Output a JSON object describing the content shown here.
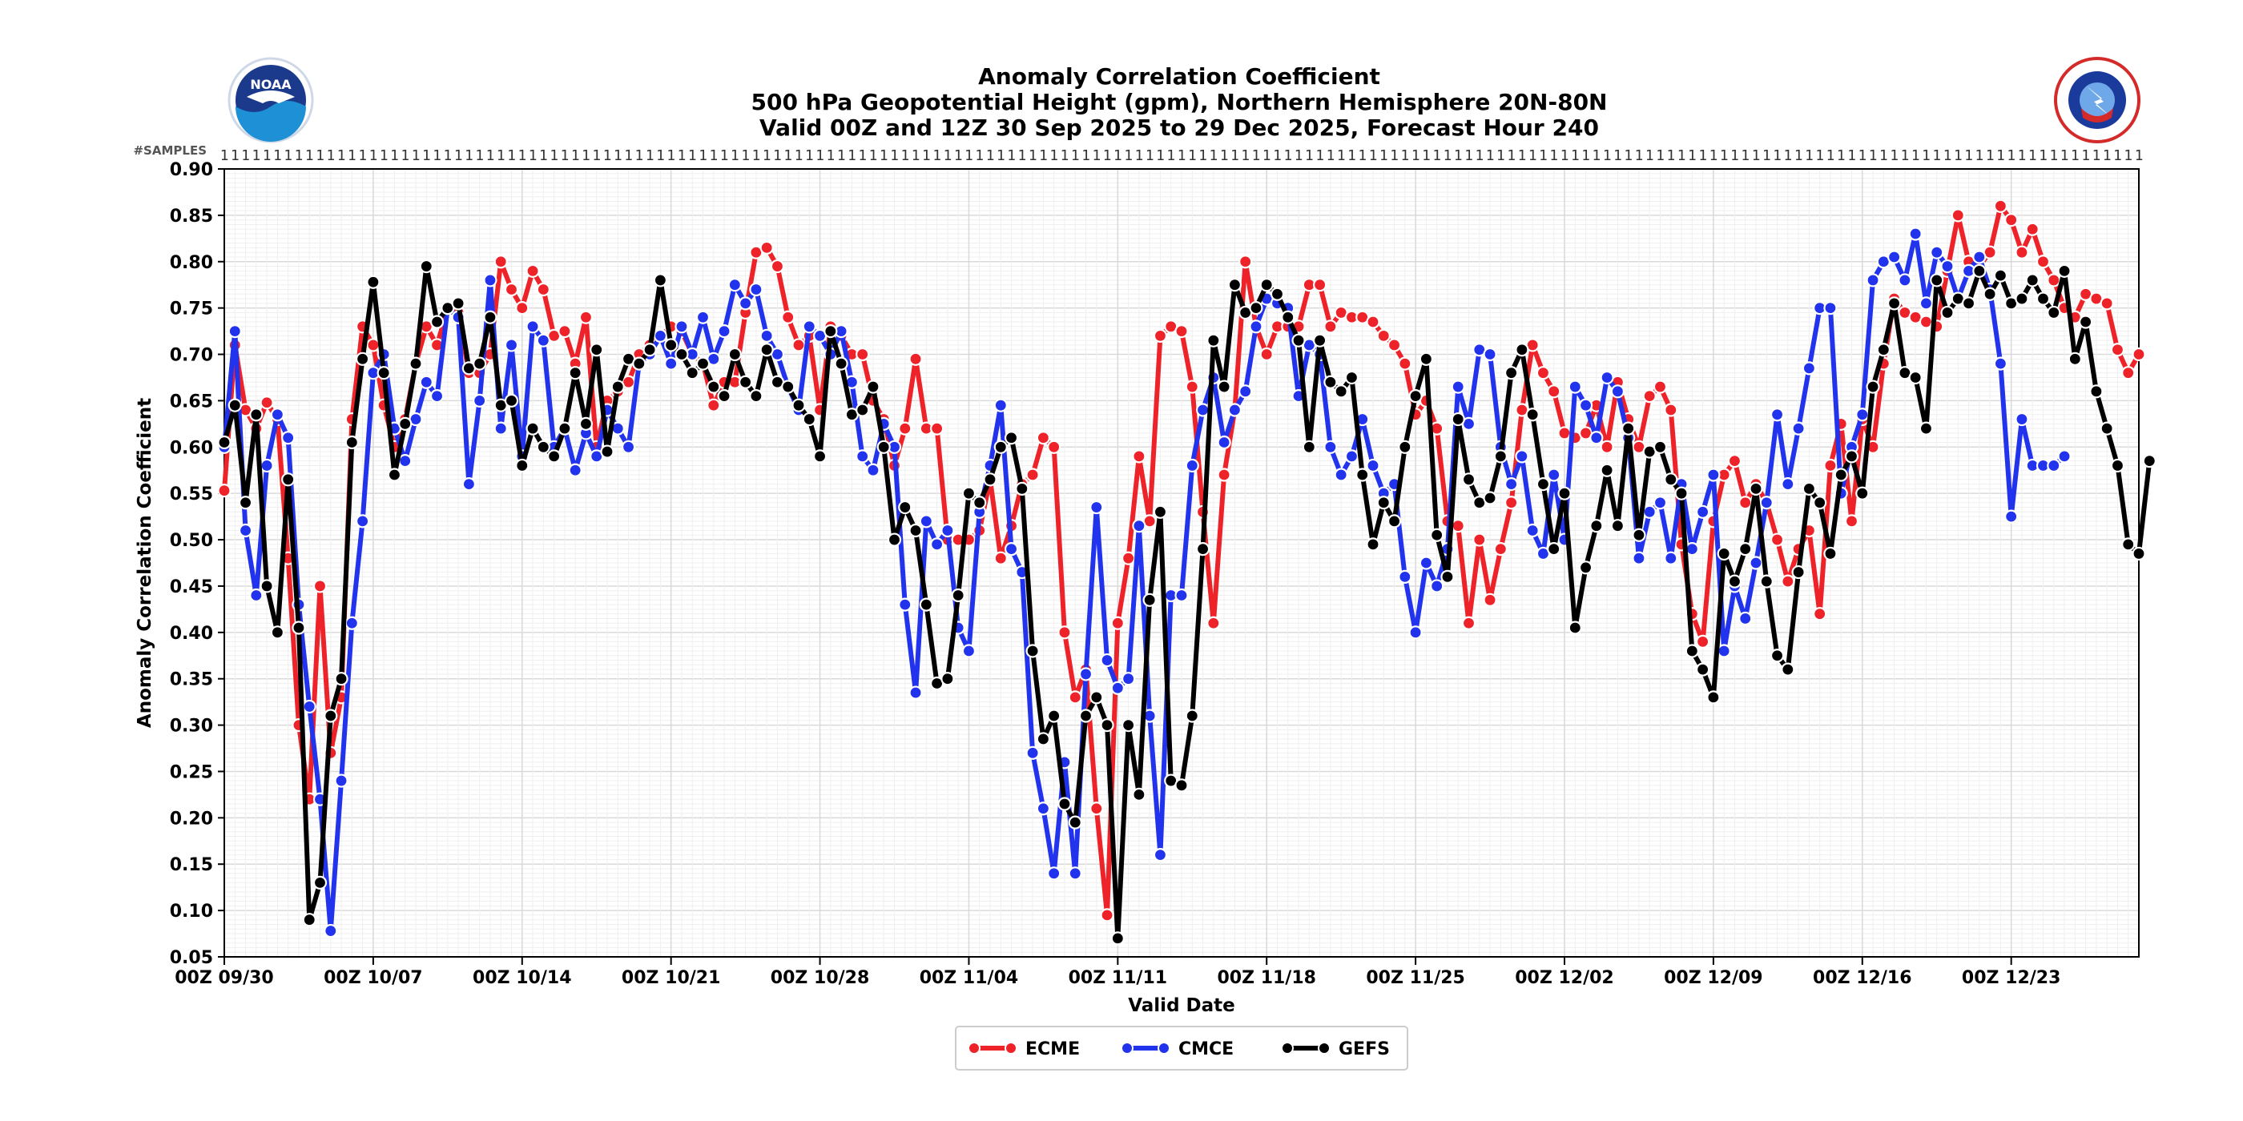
{
  "chart_data": {
    "type": "line",
    "title": "Anomaly Correlation Coefficient",
    "subtitle_1": "500 hPa Geopotential Height (gpm), Northern Hemisphere 20N-80N",
    "subtitle_2": "Valid 00Z and 12Z 30 Sep 2025 to 29 Dec 2025, Forecast Hour 240",
    "xlabel": "Valid Date",
    "ylabel": "Anomaly Correlation Coefficient",
    "samples_label": "#SAMPLES",
    "samples_value": "1",
    "ylim": [
      0.05,
      0.9
    ],
    "yticks": [
      "0.05",
      "0.10",
      "0.15",
      "0.20",
      "0.25",
      "0.30",
      "0.35",
      "0.40",
      "0.45",
      "0.50",
      "0.55",
      "0.60",
      "0.65",
      "0.70",
      "0.75",
      "0.80",
      "0.85",
      "0.90"
    ],
    "xticks": [
      "00Z 09/30",
      "00Z 10/07",
      "00Z 10/14",
      "00Z 10/21",
      "00Z 10/28",
      "00Z 11/04",
      "00Z 11/11",
      "00Z 11/18",
      "00Z 11/25",
      "00Z 12/02",
      "00Z 12/09",
      "00Z 12/16",
      "00Z 12/23"
    ],
    "x_start": "00Z 09/30",
    "x_end": "12Z 12/29",
    "x_step": "12 h",
    "grid": true,
    "legend_position": "bottom-center",
    "series": [
      {
        "name": "ECME",
        "color": "#ee2229",
        "values": [
          0.553,
          0.71,
          0.64,
          0.62,
          0.648,
          0.63,
          0.48,
          0.3,
          0.22,
          0.45,
          0.27,
          0.33,
          0.63,
          0.73,
          0.71,
          0.645,
          0.6,
          0.63,
          0.69,
          0.73,
          0.71,
          0.75,
          0.745,
          0.68,
          0.68,
          0.7,
          0.8,
          0.77,
          0.75,
          0.79,
          0.77,
          0.72,
          0.725,
          0.69,
          0.74,
          0.6,
          0.65,
          0.66,
          0.67,
          0.7,
          0.71,
          0.72,
          0.73,
          0.725,
          0.7,
          0.69,
          0.645,
          0.67,
          0.67,
          0.745,
          0.81,
          0.815,
          0.795,
          0.74,
          0.71,
          0.72,
          0.64,
          0.73,
          0.72,
          0.7,
          0.7,
          0.65,
          0.63,
          0.58,
          0.62,
          0.695,
          0.62,
          0.62,
          0.5,
          0.5,
          0.5,
          0.51,
          0.565,
          0.48,
          0.515,
          0.56,
          0.57,
          0.61,
          0.6,
          0.4,
          0.33,
          0.36,
          0.21,
          0.095,
          0.41,
          0.48,
          0.59,
          0.52,
          0.72,
          0.73,
          0.725,
          0.665,
          0.53,
          0.41,
          0.57,
          0.64,
          0.8,
          0.73,
          0.7,
          0.73,
          0.73,
          0.73,
          0.775,
          0.775,
          0.73,
          0.745,
          0.74,
          0.74,
          0.735,
          0.72,
          0.71,
          0.69,
          0.635,
          0.65,
          0.62,
          0.52,
          0.515,
          0.41,
          0.5,
          0.435,
          0.49,
          0.54,
          0.64,
          0.71,
          0.68,
          0.66,
          0.615,
          0.61,
          0.615,
          0.645,
          0.6,
          0.67,
          0.63,
          0.6,
          0.655,
          0.665,
          0.64,
          0.495,
          0.42,
          0.39,
          0.52,
          0.57,
          0.585,
          0.54,
          0.56,
          0.54,
          0.5,
          0.455,
          0.49,
          0.51,
          0.42,
          0.58,
          0.625,
          0.52,
          0.63,
          0.6,
          0.69,
          0.76,
          0.745,
          0.74,
          0.735,
          0.73,
          0.79,
          0.85,
          0.8,
          0.795,
          0.81,
          0.86,
          0.845,
          0.81,
          0.835,
          0.8,
          0.78,
          0.75,
          0.74,
          0.765,
          0.76,
          0.755,
          0.705,
          0.68,
          0.7
        ]
      },
      {
        "name": "CMCE",
        "color": "#2233ee",
        "values": [
          0.6,
          0.725,
          0.51,
          0.44,
          0.58,
          0.635,
          0.61,
          0.43,
          0.32,
          0.22,
          0.078,
          0.24,
          0.41,
          0.52,
          0.68,
          0.7,
          0.62,
          0.585,
          0.63,
          0.67,
          0.655,
          0.75,
          0.74,
          0.56,
          0.65,
          0.78,
          0.62,
          0.71,
          0.59,
          0.73,
          0.715,
          0.6,
          0.62,
          0.575,
          0.615,
          0.59,
          0.64,
          0.62,
          0.6,
          0.69,
          0.7,
          0.72,
          0.69,
          0.73,
          0.7,
          0.74,
          0.695,
          0.725,
          0.775,
          0.755,
          0.77,
          0.72,
          0.7,
          0.665,
          0.64,
          0.73,
          0.72,
          0.7,
          0.725,
          0.67,
          0.59,
          0.575,
          0.625,
          0.6,
          0.43,
          0.335,
          0.52,
          0.495,
          0.51,
          0.405,
          0.38,
          0.53,
          0.58,
          0.645,
          0.49,
          0.465,
          0.27,
          0.21,
          0.14,
          0.26,
          0.14,
          0.355,
          0.535,
          0.37,
          0.34,
          0.35,
          0.515,
          0.31,
          0.16,
          0.44,
          0.44,
          0.58,
          0.64,
          0.675,
          0.605,
          0.64,
          0.66,
          0.73,
          0.76,
          0.755,
          0.75,
          0.655,
          0.71,
          0.7,
          0.6,
          0.57,
          0.59,
          0.63,
          0.58,
          0.55,
          0.56,
          0.46,
          0.4,
          0.475,
          0.45,
          0.49,
          0.665,
          0.625,
          0.705,
          0.7,
          0.6,
          0.56,
          0.59,
          0.51,
          0.485,
          0.57,
          0.5,
          0.665,
          0.645,
          0.61,
          0.675,
          0.66,
          0.61,
          0.48,
          0.53,
          0.54,
          0.48,
          0.56,
          0.49,
          0.53,
          0.57,
          0.38,
          0.45,
          0.415,
          0.475,
          0.54,
          0.635,
          0.56,
          0.62,
          0.685,
          0.75,
          0.75,
          0.55,
          0.6,
          0.635,
          0.78,
          0.8,
          0.805,
          0.78,
          0.83,
          0.755,
          0.81,
          0.795,
          0.76,
          0.79,
          0.805,
          0.77,
          0.69,
          0.525,
          0.63,
          0.58,
          0.58,
          0.58,
          0.59
        ]
      },
      {
        "name": "GEFS",
        "color": "#000000",
        "values": [
          0.605,
          0.645,
          0.54,
          0.635,
          0.45,
          0.4,
          0.565,
          0.405,
          0.09,
          0.13,
          0.31,
          0.35,
          0.605,
          0.695,
          0.778,
          0.68,
          0.57,
          0.625,
          0.69,
          0.795,
          0.735,
          0.75,
          0.755,
          0.685,
          0.69,
          0.74,
          0.645,
          0.65,
          0.58,
          0.62,
          0.6,
          0.59,
          0.62,
          0.68,
          0.625,
          0.705,
          0.595,
          0.665,
          0.695,
          0.69,
          0.705,
          0.78,
          0.71,
          0.7,
          0.68,
          0.69,
          0.665,
          0.655,
          0.7,
          0.67,
          0.655,
          0.705,
          0.67,
          0.665,
          0.645,
          0.63,
          0.59,
          0.725,
          0.69,
          0.635,
          0.64,
          0.665,
          0.6,
          0.5,
          0.535,
          0.51,
          0.43,
          0.345,
          0.35,
          0.44,
          0.55,
          0.54,
          0.565,
          0.6,
          0.61,
          0.555,
          0.38,
          0.285,
          0.31,
          0.215,
          0.195,
          0.31,
          0.33,
          0.3,
          0.07,
          0.3,
          0.225,
          0.435,
          0.53,
          0.24,
          0.235,
          0.31,
          0.49,
          0.715,
          0.665,
          0.775,
          0.745,
          0.75,
          0.775,
          0.765,
          0.74,
          0.715,
          0.6,
          0.715,
          0.67,
          0.66,
          0.675,
          0.57,
          0.495,
          0.54,
          0.52,
          0.6,
          0.655,
          0.695,
          0.505,
          0.46,
          0.63,
          0.565,
          0.54,
          0.545,
          0.59,
          0.68,
          0.705,
          0.635,
          0.56,
          0.49,
          0.55,
          0.405,
          0.47,
          0.515,
          0.575,
          0.515,
          0.62,
          0.505,
          0.595,
          0.6,
          0.565,
          0.55,
          0.38,
          0.36,
          0.33,
          0.485,
          0.455,
          0.49,
          0.555,
          0.455,
          0.375,
          0.36,
          0.465,
          0.555,
          0.54,
          0.485,
          0.57,
          0.59,
          0.55,
          0.665,
          0.705,
          0.755,
          0.68,
          0.675,
          0.62,
          0.78,
          0.745,
          0.76,
          0.755,
          0.79,
          0.765,
          0.785,
          0.755,
          0.76,
          0.78,
          0.76,
          0.745,
          0.79,
          0.695,
          0.735,
          0.66,
          0.62,
          0.58,
          0.495,
          0.485,
          0.585
        ]
      }
    ]
  }
}
